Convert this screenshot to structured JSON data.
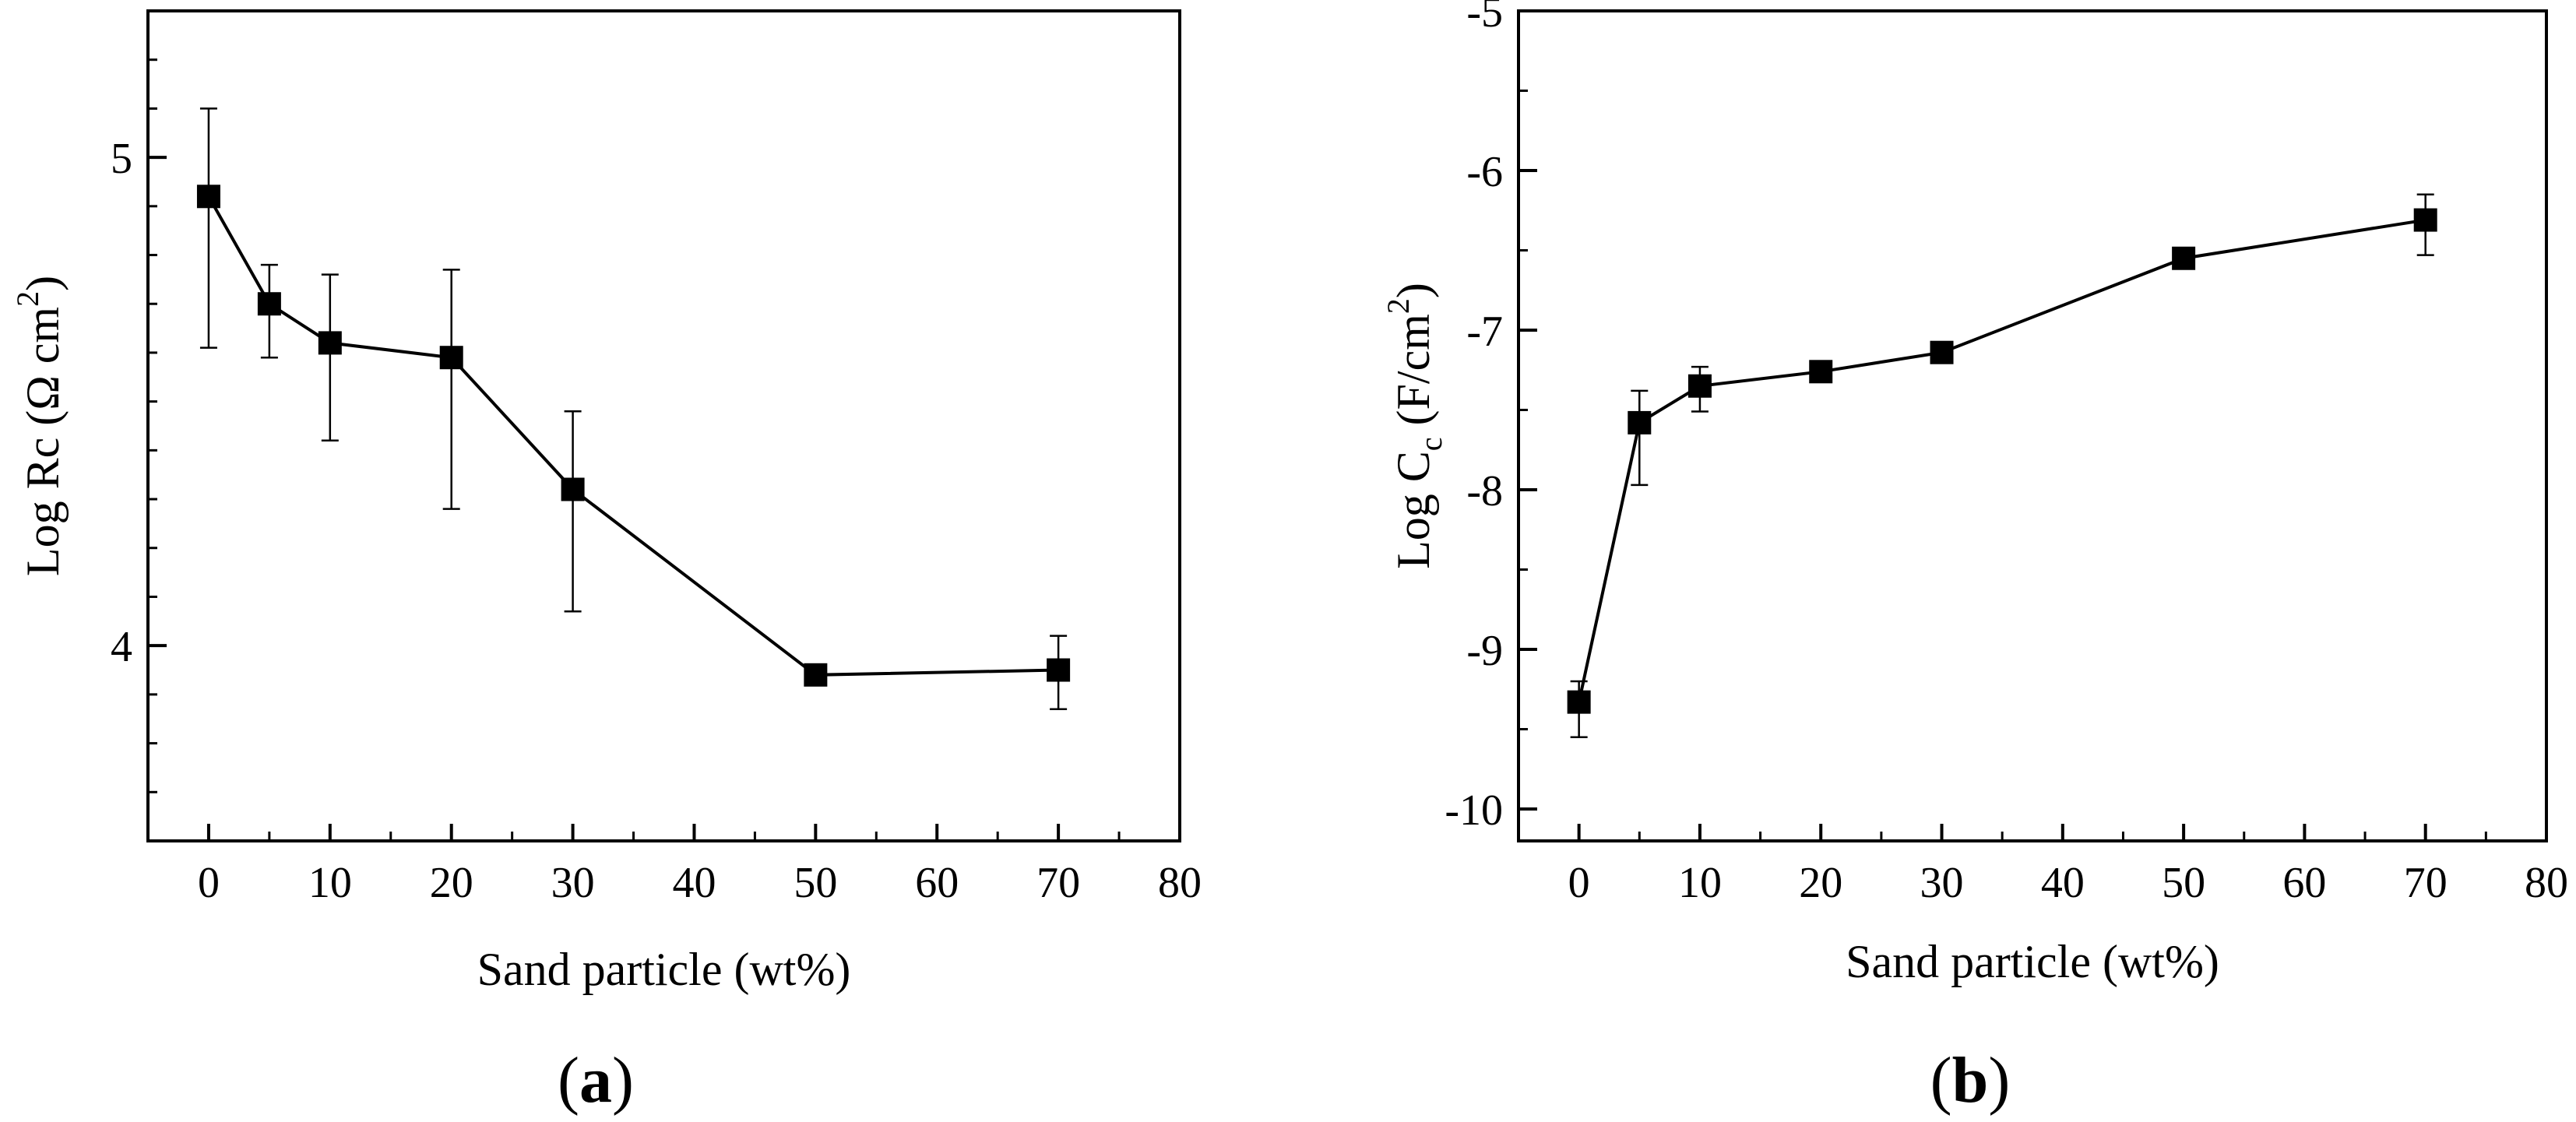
{
  "chart_data": [
    {
      "type": "line",
      "panel_label": {
        "open": "(",
        "letter": "a",
        "close": ")"
      },
      "xlabel": "Sand particle (wt%)",
      "ylabel": {
        "main": "Log Rc (Ω cm",
        "sup": "2",
        "close": ")"
      },
      "xlim": [
        -5,
        80
      ],
      "ylim": [
        3.6,
        5.3
      ],
      "xticks": [
        0,
        10,
        20,
        30,
        40,
        50,
        60,
        70,
        80
      ],
      "xtick_labels": [
        "0",
        "10",
        "20",
        "30",
        "40",
        "50",
        "60",
        "70",
        "80"
      ],
      "yticks": [
        4,
        5
      ],
      "ytick_labels": [
        "4",
        "5"
      ],
      "yminor_step": 0.1,
      "series": [
        {
          "name": "Log Rc",
          "x": [
            0,
            5,
            10,
            20,
            30,
            50,
            70
          ],
          "y": [
            4.92,
            4.7,
            4.62,
            4.59,
            4.32,
            3.94,
            3.95
          ],
          "err_low": [
            4.61,
            4.59,
            4.42,
            4.28,
            4.07,
            3.94,
            3.87
          ],
          "err_high": [
            5.1,
            4.78,
            4.76,
            4.77,
            4.48,
            3.94,
            4.02
          ]
        }
      ]
    },
    {
      "type": "line",
      "panel_label": {
        "open": "(",
        "letter": "b",
        "close": ")"
      },
      "xlabel": "Sand particle (wt%)",
      "ylabel": {
        "main": "Log C",
        "sub": "c",
        "rest": " (F/cm",
        "sup": "2",
        "close": ")"
      },
      "xlim": [
        -5,
        80
      ],
      "ylim": [
        -10.2,
        -5
      ],
      "xticks": [
        0,
        10,
        20,
        30,
        40,
        50,
        60,
        70,
        80
      ],
      "xtick_labels": [
        "0",
        "10",
        "20",
        "30",
        "40",
        "50",
        "60",
        "70",
        "80"
      ],
      "yticks": [
        -10,
        -9,
        -8,
        -7,
        -6,
        -5
      ],
      "ytick_labels": [
        "-10",
        "-9",
        "-8",
        "-7",
        "-6",
        "-5"
      ],
      "yminor_step": 0.5,
      "series": [
        {
          "name": "Log Cc",
          "x": [
            0,
            5,
            10,
            20,
            30,
            50,
            70
          ],
          "y": [
            -9.33,
            -7.58,
            -7.35,
            -7.26,
            -7.14,
            -6.55,
            -6.31
          ],
          "err_low": [
            -9.55,
            -7.97,
            -7.51,
            -7.3,
            -7.2,
            -6.61,
            -6.53
          ],
          "err_high": [
            -9.2,
            -7.38,
            -7.23,
            -7.22,
            -7.08,
            -6.51,
            -6.15
          ]
        }
      ]
    }
  ]
}
